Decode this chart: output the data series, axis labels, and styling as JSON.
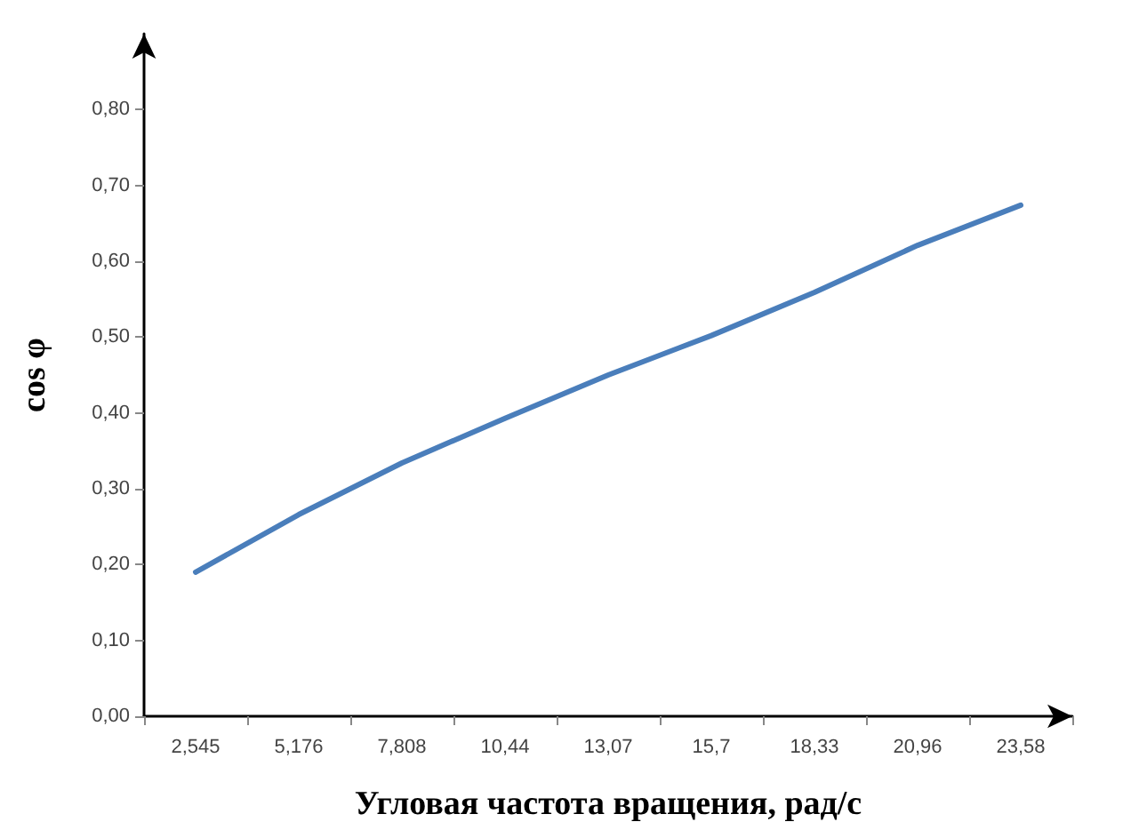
{
  "chart_data": {
    "type": "line",
    "xlabel": "Угловая частота вращения, рад/с",
    "ylabel": "cos φ",
    "categories": [
      "2,545",
      "5,176",
      "7,808",
      "10,44",
      "13,07",
      "15,7",
      "18,33",
      "20,96",
      "23,58"
    ],
    "series": [
      {
        "color": "#4a7ebb",
        "values": [
          0.19,
          0.266,
          0.334,
          0.393,
          0.45,
          0.502,
          0.559,
          0.621,
          0.674
        ]
      }
    ],
    "ylim": [
      0,
      0.9
    ],
    "yticks": [
      {
        "value": 0,
        "label": "0,00"
      },
      {
        "value": 0.1,
        "label": "0,10"
      },
      {
        "value": 0.2,
        "label": "0,20"
      },
      {
        "value": 0.3,
        "label": "0,30"
      },
      {
        "value": 0.4,
        "label": "0,40"
      },
      {
        "value": 0.5,
        "label": "0,50"
      },
      {
        "value": 0.6,
        "label": "0,60"
      },
      {
        "value": 0.7,
        "label": "0,70"
      },
      {
        "value": 0.8,
        "label": "0,80"
      }
    ],
    "grid": false,
    "marker": "none",
    "line_style": "solid"
  }
}
